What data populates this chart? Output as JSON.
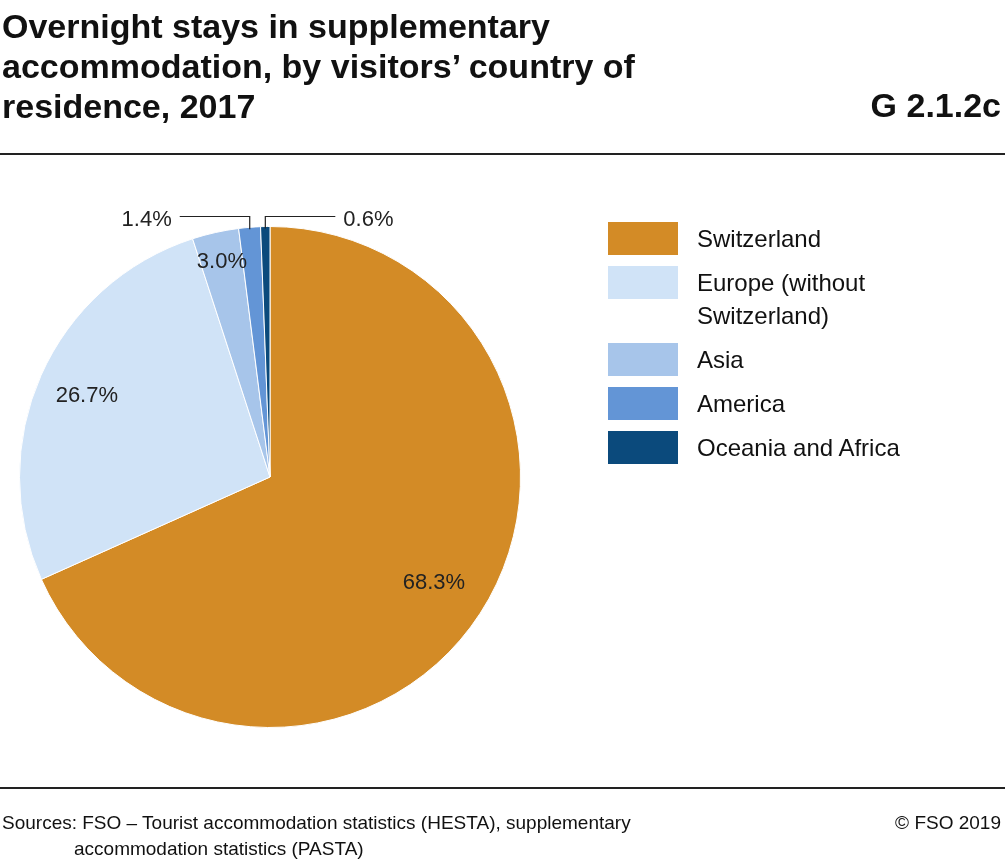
{
  "chart_data": {
    "type": "pie",
    "title": "Overnight stays in supplementary accommodation, by visitors’ country of residence, 2017",
    "categories": [
      "Switzerland",
      "Europe (without Switzerland)",
      "Asia",
      "America",
      "Oceania and Africa"
    ],
    "values": [
      68.3,
      26.7,
      3.0,
      1.4,
      0.6
    ],
    "colors": [
      "#d38b26",
      "#d0e3f7",
      "#a7c5ea",
      "#6395d6",
      "#0b4a7c"
    ],
    "value_labels": [
      "68.3%",
      "26.7%",
      "3.0%",
      "1.4%",
      "0.6%"
    ],
    "legend": "right",
    "annotations": [
      "G 2.1.2c",
      "Sources: FSO – Tourist accommodation statistics (HESTA), supplementary accommodation statistics (PASTA)",
      "© FSO 2019"
    ]
  }
}
